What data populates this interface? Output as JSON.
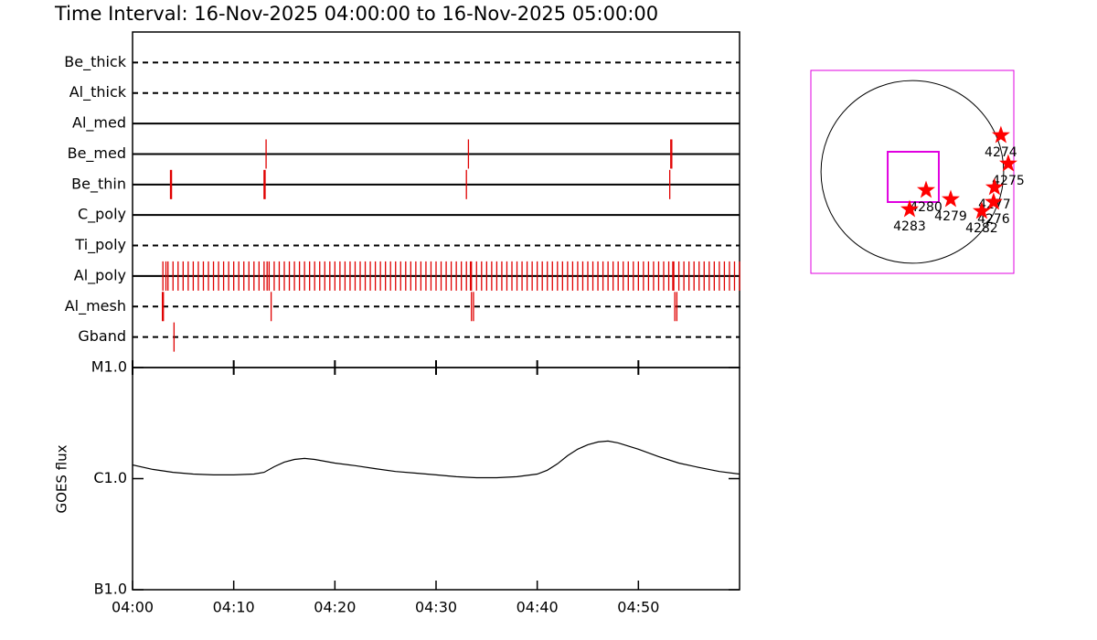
{
  "chart_data": [
    {
      "type": "timeline",
      "title": "Time Interval: 16-Nov-2025 04:00:00 to 16-Nov-2025 05:00:00",
      "xlim": [
        0,
        60
      ],
      "event_color": "#e00000",
      "rows": [
        {
          "name": "Be_thick",
          "style": "dashed",
          "times": []
        },
        {
          "name": "Al_thick",
          "style": "dashed",
          "times": []
        },
        {
          "name": "Al_med",
          "style": "solid",
          "times": []
        },
        {
          "name": "Be_med",
          "style": "solid",
          "times": [
            13.2,
            33.2,
            53.2,
            53.3
          ]
        },
        {
          "name": "Be_thin",
          "style": "solid",
          "times": [
            3.75,
            3.85,
            13.0,
            13.1,
            33.0,
            53.1
          ]
        },
        {
          "name": "C_poly",
          "style": "solid",
          "times": []
        },
        {
          "name": "Ti_poly",
          "style": "dashed",
          "times": []
        },
        {
          "name": "Al_poly",
          "style": "solid",
          "times": [
            3,
            3.3,
            3.5,
            4,
            4.5,
            5,
            5.5,
            6,
            6.5,
            7,
            7.5,
            8,
            8.5,
            9,
            9.5,
            10,
            10.5,
            11,
            11.5,
            12,
            12.5,
            13,
            13.3,
            13.5,
            14,
            14.5,
            15,
            15.5,
            16,
            16.5,
            17,
            17.5,
            18,
            18.5,
            19,
            19.5,
            20,
            20.5,
            21,
            21.5,
            22,
            22.5,
            23,
            23.5,
            24,
            24.5,
            25,
            25.5,
            26,
            26.5,
            27,
            27.5,
            28,
            28.5,
            29,
            29.5,
            30,
            30.5,
            31,
            31.5,
            32,
            32.5,
            33,
            33.4,
            33.5,
            34,
            34.5,
            35,
            35.5,
            36,
            36.5,
            37,
            37.5,
            38,
            38.5,
            39,
            39.5,
            40,
            40.5,
            41,
            41.5,
            42,
            42.5,
            43,
            43.5,
            44,
            44.5,
            45,
            45.5,
            46,
            46.5,
            47,
            47.5,
            48,
            48.5,
            49,
            49.5,
            50,
            50.5,
            51,
            51.5,
            52,
            52.5,
            53,
            53.4,
            53.5,
            54,
            54.5,
            55,
            55.5,
            56,
            56.5,
            57,
            57.5,
            58,
            58.5,
            59,
            59.5,
            60
          ]
        },
        {
          "name": "Al_mesh",
          "style": "dashed",
          "times": [
            2.95,
            3.05,
            13.7,
            33.5,
            33.7,
            53.6,
            53.8
          ]
        },
        {
          "name": "Gband",
          "style": "dashed",
          "times": [
            4.1
          ]
        }
      ]
    },
    {
      "type": "line",
      "y_label": "GOES flux",
      "log": true,
      "color": "#000000",
      "xlim": [
        0,
        60
      ],
      "xticks": [
        {
          "value": 0,
          "label": "04:00"
        },
        {
          "value": 10,
          "label": "04:10"
        },
        {
          "value": 20,
          "label": "04:20"
        },
        {
          "value": 30,
          "label": "04:30"
        },
        {
          "value": 40,
          "label": "04:40"
        },
        {
          "value": 50,
          "label": "04:50"
        }
      ],
      "ylim": [
        1e-07,
        1e-05
      ],
      "yticks": [
        {
          "value": 1e-05,
          "label": "M1.0"
        },
        {
          "value": 1e-06,
          "label": "C1.0"
        },
        {
          "value": 1e-07,
          "label": "B1.0"
        }
      ],
      "x": [
        0,
        2,
        4,
        6,
        8,
        10,
        12,
        13,
        14,
        15,
        16,
        17,
        18,
        20,
        22,
        24,
        26,
        28,
        30,
        32,
        34,
        36,
        38,
        40,
        41,
        42,
        43,
        44,
        45,
        46,
        47,
        48,
        50,
        52,
        54,
        56,
        58,
        60
      ],
      "values": [
        1.33e-06,
        1.21e-06,
        1.14e-06,
        1.1e-06,
        1.08e-06,
        1.08e-06,
        1.1e-06,
        1.14e-06,
        1.28e-06,
        1.41e-06,
        1.49e-06,
        1.52e-06,
        1.49e-06,
        1.38e-06,
        1.31e-06,
        1.23e-06,
        1.16e-06,
        1.12e-06,
        1.08e-06,
        1.04e-06,
        1.02e-06,
        1.02e-06,
        1.04e-06,
        1.1e-06,
        1.19e-06,
        1.36e-06,
        1.61e-06,
        1.84e-06,
        2.02e-06,
        2.14e-06,
        2.18e-06,
        2.1e-06,
        1.84e-06,
        1.58e-06,
        1.38e-06,
        1.26e-06,
        1.16e-06,
        1.1e-06
      ]
    },
    {
      "type": "map",
      "xlim": [
        -1100,
        1100
      ],
      "ylim": [
        -1100,
        1100
      ],
      "sun_radius": 990,
      "frame_color": "#e000e0",
      "star_color": "#ff0000",
      "fov": {
        "xlim": [
          -267,
          287
        ],
        "ylim": [
          -327,
          218
        ]
      },
      "regions": [
        {
          "label": "4274",
          "x": 960,
          "y": 396
        },
        {
          "label": "4275",
          "x": 1040,
          "y": 89
        },
        {
          "label": "4277",
          "x": 891,
          "y": -168
        },
        {
          "label": "4276",
          "x": 881,
          "y": -327
        },
        {
          "label": "4282",
          "x": 752,
          "y": -426
        },
        {
          "label": "4279",
          "x": 416,
          "y": -297
        },
        {
          "label": "4280",
          "x": 149,
          "y": -198
        },
        {
          "label": "4283",
          "x": -30,
          "y": -406
        }
      ]
    }
  ]
}
